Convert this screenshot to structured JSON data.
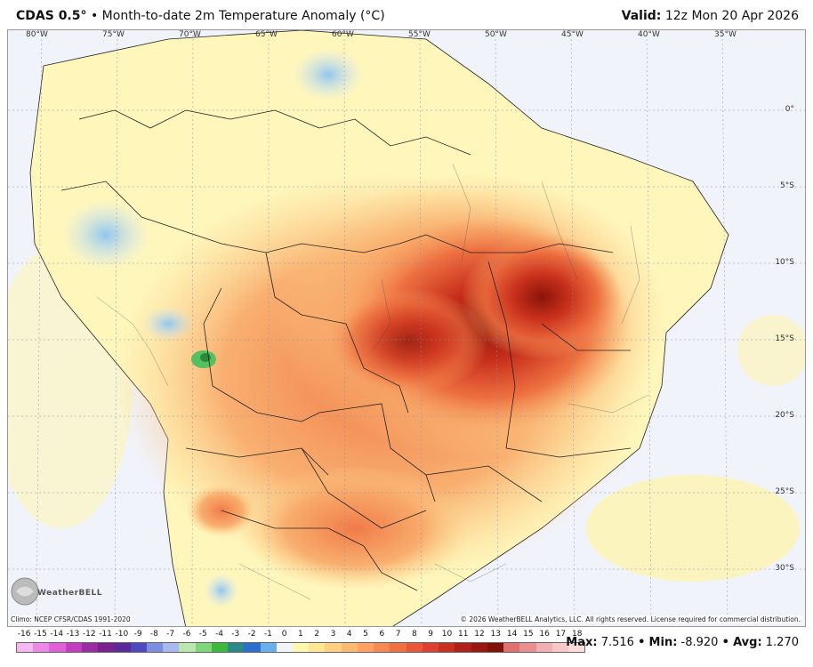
{
  "header": {
    "model": "CDAS 0.5°",
    "bullet": "•",
    "title": "Month-to-date 2m Temperature Anomaly (°C)",
    "valid_label": "Valid:",
    "valid_time": "12z Mon 20 Apr 2026"
  },
  "map": {
    "lon_labels": [
      "80°W",
      "75°W",
      "70°W",
      "65°W",
      "60°W",
      "55°W",
      "50°W",
      "45°W",
      "40°W",
      "35°W"
    ],
    "lat_labels": [
      "0°",
      "5°S",
      "10°S",
      "15°S",
      "20°S",
      "25°S",
      "30°S"
    ],
    "climo": "Climo: NCEP CFSR/CDAS 1991-2020",
    "copyright": "© 2026 WeatherBELL Analytics, LLC. All rights reserved. License required for commercial distribution.",
    "logo": "WeatherBELL"
  },
  "scale": {
    "labels": [
      "-16",
      "-15",
      "-14",
      "-13",
      "-12",
      "-11",
      "-10",
      "-9",
      "-8",
      "-7",
      "-6",
      "-5",
      "-4",
      "-3",
      "-2",
      "-1",
      "0",
      "1",
      "2",
      "3",
      "4",
      "5",
      "6",
      "7",
      "8",
      "9",
      "10",
      "11",
      "12",
      "13",
      "14",
      "15",
      "16",
      "17",
      "18"
    ],
    "colors": [
      "#f5b8f0",
      "#ee88e6",
      "#e060d8",
      "#c43cc0",
      "#9b2aa4",
      "#7a1f8c",
      "#5a2a9a",
      "#5048c0",
      "#7a8ee0",
      "#a8b8f0",
      "#b8e8b0",
      "#7fd67a",
      "#3cb83c",
      "#2a8a8a",
      "#2a6fd0",
      "#6aaef0",
      "#f4f4f8",
      "#fff6b0",
      "#ffe890",
      "#ffd080",
      "#ffb870",
      "#ffa060",
      "#f88850",
      "#f07040",
      "#e85838",
      "#e04030",
      "#c83020",
      "#b02018",
      "#981810",
      "#801008",
      "#e07070",
      "#e89090",
      "#f0b0b0",
      "#f8c8c8",
      "#fadcdc"
    ]
  },
  "stats": {
    "max_label": "Max:",
    "max": "7.516",
    "min_label": "Min:",
    "min": "-8.920",
    "avg_label": "Avg:",
    "avg": "1.270",
    "sep": "•"
  }
}
